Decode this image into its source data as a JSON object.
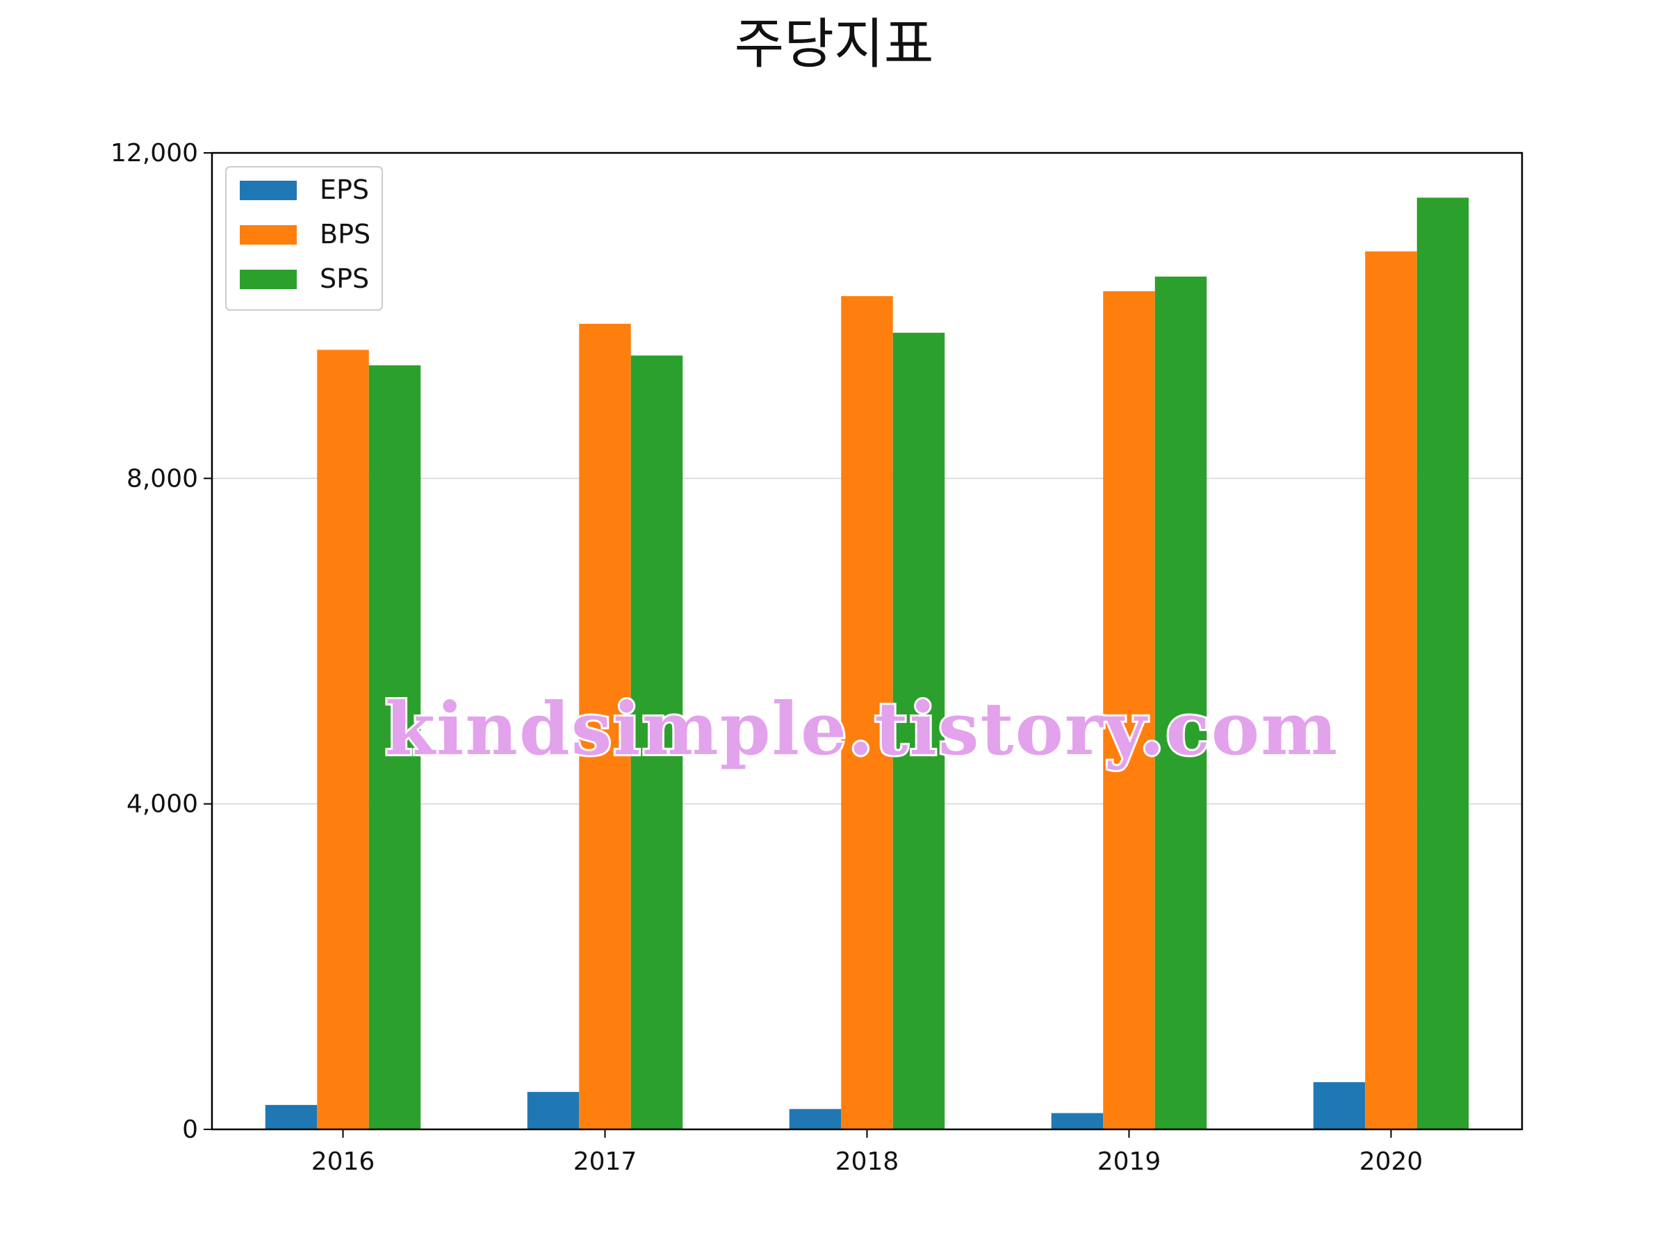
{
  "chart_data": {
    "type": "bar",
    "title": "주당지표",
    "xlabel": "",
    "ylabel": "",
    "categories": [
      "2016",
      "2017",
      "2018",
      "2019",
      "2020"
    ],
    "series": [
      {
        "name": "EPS",
        "color": "#1f77b4",
        "values": [
          300,
          460,
          250,
          200,
          580
        ]
      },
      {
        "name": "BPS",
        "color": "#ff7f0e",
        "values": [
          9580,
          9900,
          10240,
          10300,
          10790
        ]
      },
      {
        "name": "SPS",
        "color": "#2ca02c",
        "values": [
          9390,
          9510,
          9790,
          10480,
          11450
        ]
      }
    ],
    "ylim": [
      0,
      12000
    ],
    "yticks": [
      0,
      4000,
      8000,
      12000
    ],
    "ytick_labels": [
      "0",
      "4,000",
      "8,000",
      "12,000"
    ],
    "grid": "horizontal",
    "legend_position": "top-left",
    "watermark": "kindsimple.tistory.com"
  }
}
